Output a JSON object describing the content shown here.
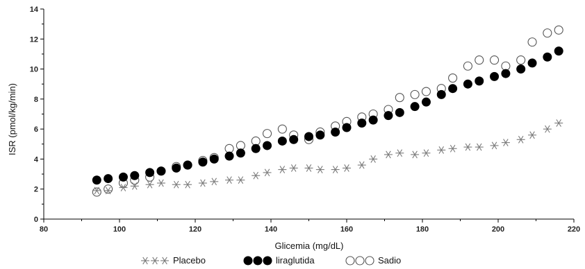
{
  "chart_data": {
    "type": "scatter",
    "title": "",
    "xlabel": "Glicemia (mg/dL)",
    "ylabel": "ISR (pmol/kg/min)",
    "xlim": [
      80,
      220
    ],
    "ylim": [
      0,
      14
    ],
    "xticks": [
      80,
      100,
      120,
      140,
      160,
      180,
      200,
      220
    ],
    "yticks": [
      0,
      2,
      4,
      6,
      8,
      10,
      12,
      14
    ],
    "grid": false,
    "legend_position": "bottom",
    "series": [
      {
        "name": "Placebo",
        "marker": "asterisk",
        "color": "#7a7a7a",
        "x": [
          94,
          97,
          101,
          104,
          108,
          111,
          115,
          118,
          122,
          125,
          129,
          132,
          136,
          139,
          143,
          146,
          150,
          153,
          157,
          160,
          164,
          167,
          171,
          174,
          178,
          181,
          185,
          188,
          192,
          195,
          199,
          202,
          206,
          209,
          213,
          216
        ],
        "y": [
          1.9,
          1.9,
          2.1,
          2.2,
          2.3,
          2.4,
          2.3,
          2.3,
          2.4,
          2.5,
          2.6,
          2.6,
          2.9,
          3.1,
          3.3,
          3.4,
          3.4,
          3.3,
          3.3,
          3.4,
          3.6,
          4.0,
          4.3,
          4.4,
          4.3,
          4.4,
          4.6,
          4.7,
          4.8,
          4.8,
          4.9,
          5.1,
          5.3,
          5.6,
          6.0,
          6.4
        ]
      },
      {
        "name": "liraglutida",
        "marker": "filled-circle",
        "color": "#000000",
        "x": [
          94,
          97,
          101,
          104,
          108,
          111,
          115,
          118,
          122,
          125,
          129,
          132,
          136,
          139,
          143,
          146,
          150,
          153,
          157,
          160,
          164,
          167,
          171,
          174,
          178,
          181,
          185,
          188,
          192,
          195,
          199,
          202,
          206,
          209,
          213,
          216
        ],
        "y": [
          2.6,
          2.7,
          2.8,
          2.9,
          3.1,
          3.2,
          3.4,
          3.6,
          3.8,
          4.0,
          4.2,
          4.4,
          4.7,
          4.9,
          5.2,
          5.3,
          5.5,
          5.6,
          5.8,
          6.1,
          6.4,
          6.6,
          6.9,
          7.1,
          7.5,
          7.8,
          8.3,
          8.7,
          9.0,
          9.2,
          9.5,
          9.7,
          10.0,
          10.4,
          10.8,
          11.2
        ]
      },
      {
        "name": "Sadio",
        "marker": "open-circle",
        "color": "#555555",
        "x": [
          94,
          97,
          101,
          104,
          108,
          111,
          115,
          118,
          122,
          125,
          129,
          132,
          136,
          139,
          143,
          146,
          150,
          153,
          157,
          160,
          164,
          167,
          171,
          174,
          178,
          181,
          185,
          188,
          192,
          195,
          199,
          202,
          206,
          209,
          213,
          216
        ],
        "y": [
          1.8,
          2.0,
          2.4,
          2.6,
          2.8,
          3.2,
          3.5,
          3.6,
          3.9,
          4.1,
          4.7,
          4.9,
          5.2,
          5.7,
          6.0,
          5.6,
          5.3,
          5.8,
          6.2,
          6.5,
          6.8,
          7.0,
          7.3,
          8.1,
          8.3,
          8.5,
          8.7,
          9.4,
          10.2,
          10.6,
          10.6,
          10.2,
          10.6,
          11.8,
          12.4,
          12.6
        ]
      }
    ]
  }
}
